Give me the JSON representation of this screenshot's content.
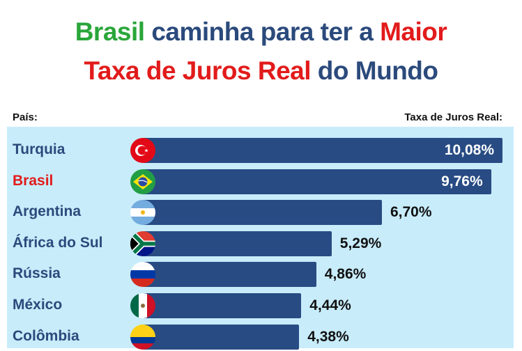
{
  "title": {
    "line1": [
      {
        "text": "Brasil",
        "color": "green"
      },
      {
        "text": " caminha para ter a ",
        "color": "blue"
      },
      {
        "text": "Maior",
        "color": "red"
      }
    ],
    "line2": [
      {
        "text": "Taxa de Juros Real",
        "color": "red"
      },
      {
        "text": " do Mundo",
        "color": "blue"
      }
    ]
  },
  "headers": {
    "country": "País:",
    "rate": "Taxa de Juros Real:"
  },
  "colors": {
    "bar": "#284b84",
    "panel": "#c8ecfa",
    "title_blue": "#2b4a7c",
    "green": "#2aa63a",
    "red": "#e21b1b"
  },
  "rows": [
    {
      "country": "Turquia",
      "value": "10,08%",
      "flag": "turkey-flag",
      "highlight": false
    },
    {
      "country": "Brasil",
      "value": "9,76%",
      "flag": "brazil-flag",
      "highlight": true
    },
    {
      "country": "Argentina",
      "value": "6,70%",
      "flag": "argentina-flag",
      "highlight": false
    },
    {
      "country": "África do Sul",
      "value": "5,29%",
      "flag": "south-africa-flag",
      "highlight": false
    },
    {
      "country": "Rússia",
      "value": "4,86%",
      "flag": "russia-flag",
      "highlight": false
    },
    {
      "country": "México",
      "value": "4,44%",
      "flag": "mexico-flag",
      "highlight": false
    },
    {
      "country": "Colômbia",
      "value": "4,38%",
      "flag": "colombia-flag",
      "highlight": false
    }
  ],
  "chart_data": {
    "type": "bar",
    "orientation": "horizontal",
    "title": "Brasil caminha para ter a Maior Taxa de Juros Real do Mundo",
    "xlabel": "Taxa de Juros Real:",
    "ylabel": "País:",
    "categories": [
      "Turquia",
      "Brasil",
      "Argentina",
      "África do Sul",
      "Rússia",
      "México",
      "Colômbia"
    ],
    "values": [
      10.08,
      9.76,
      6.7,
      5.29,
      4.86,
      4.44,
      4.38
    ],
    "value_labels": [
      "10,08%",
      "9,76%",
      "6,70%",
      "5,29%",
      "4,86%",
      "4,44%",
      "4,38%"
    ],
    "unit": "%",
    "highlighted_category": "Brasil",
    "grid": false,
    "legend": null
  }
}
